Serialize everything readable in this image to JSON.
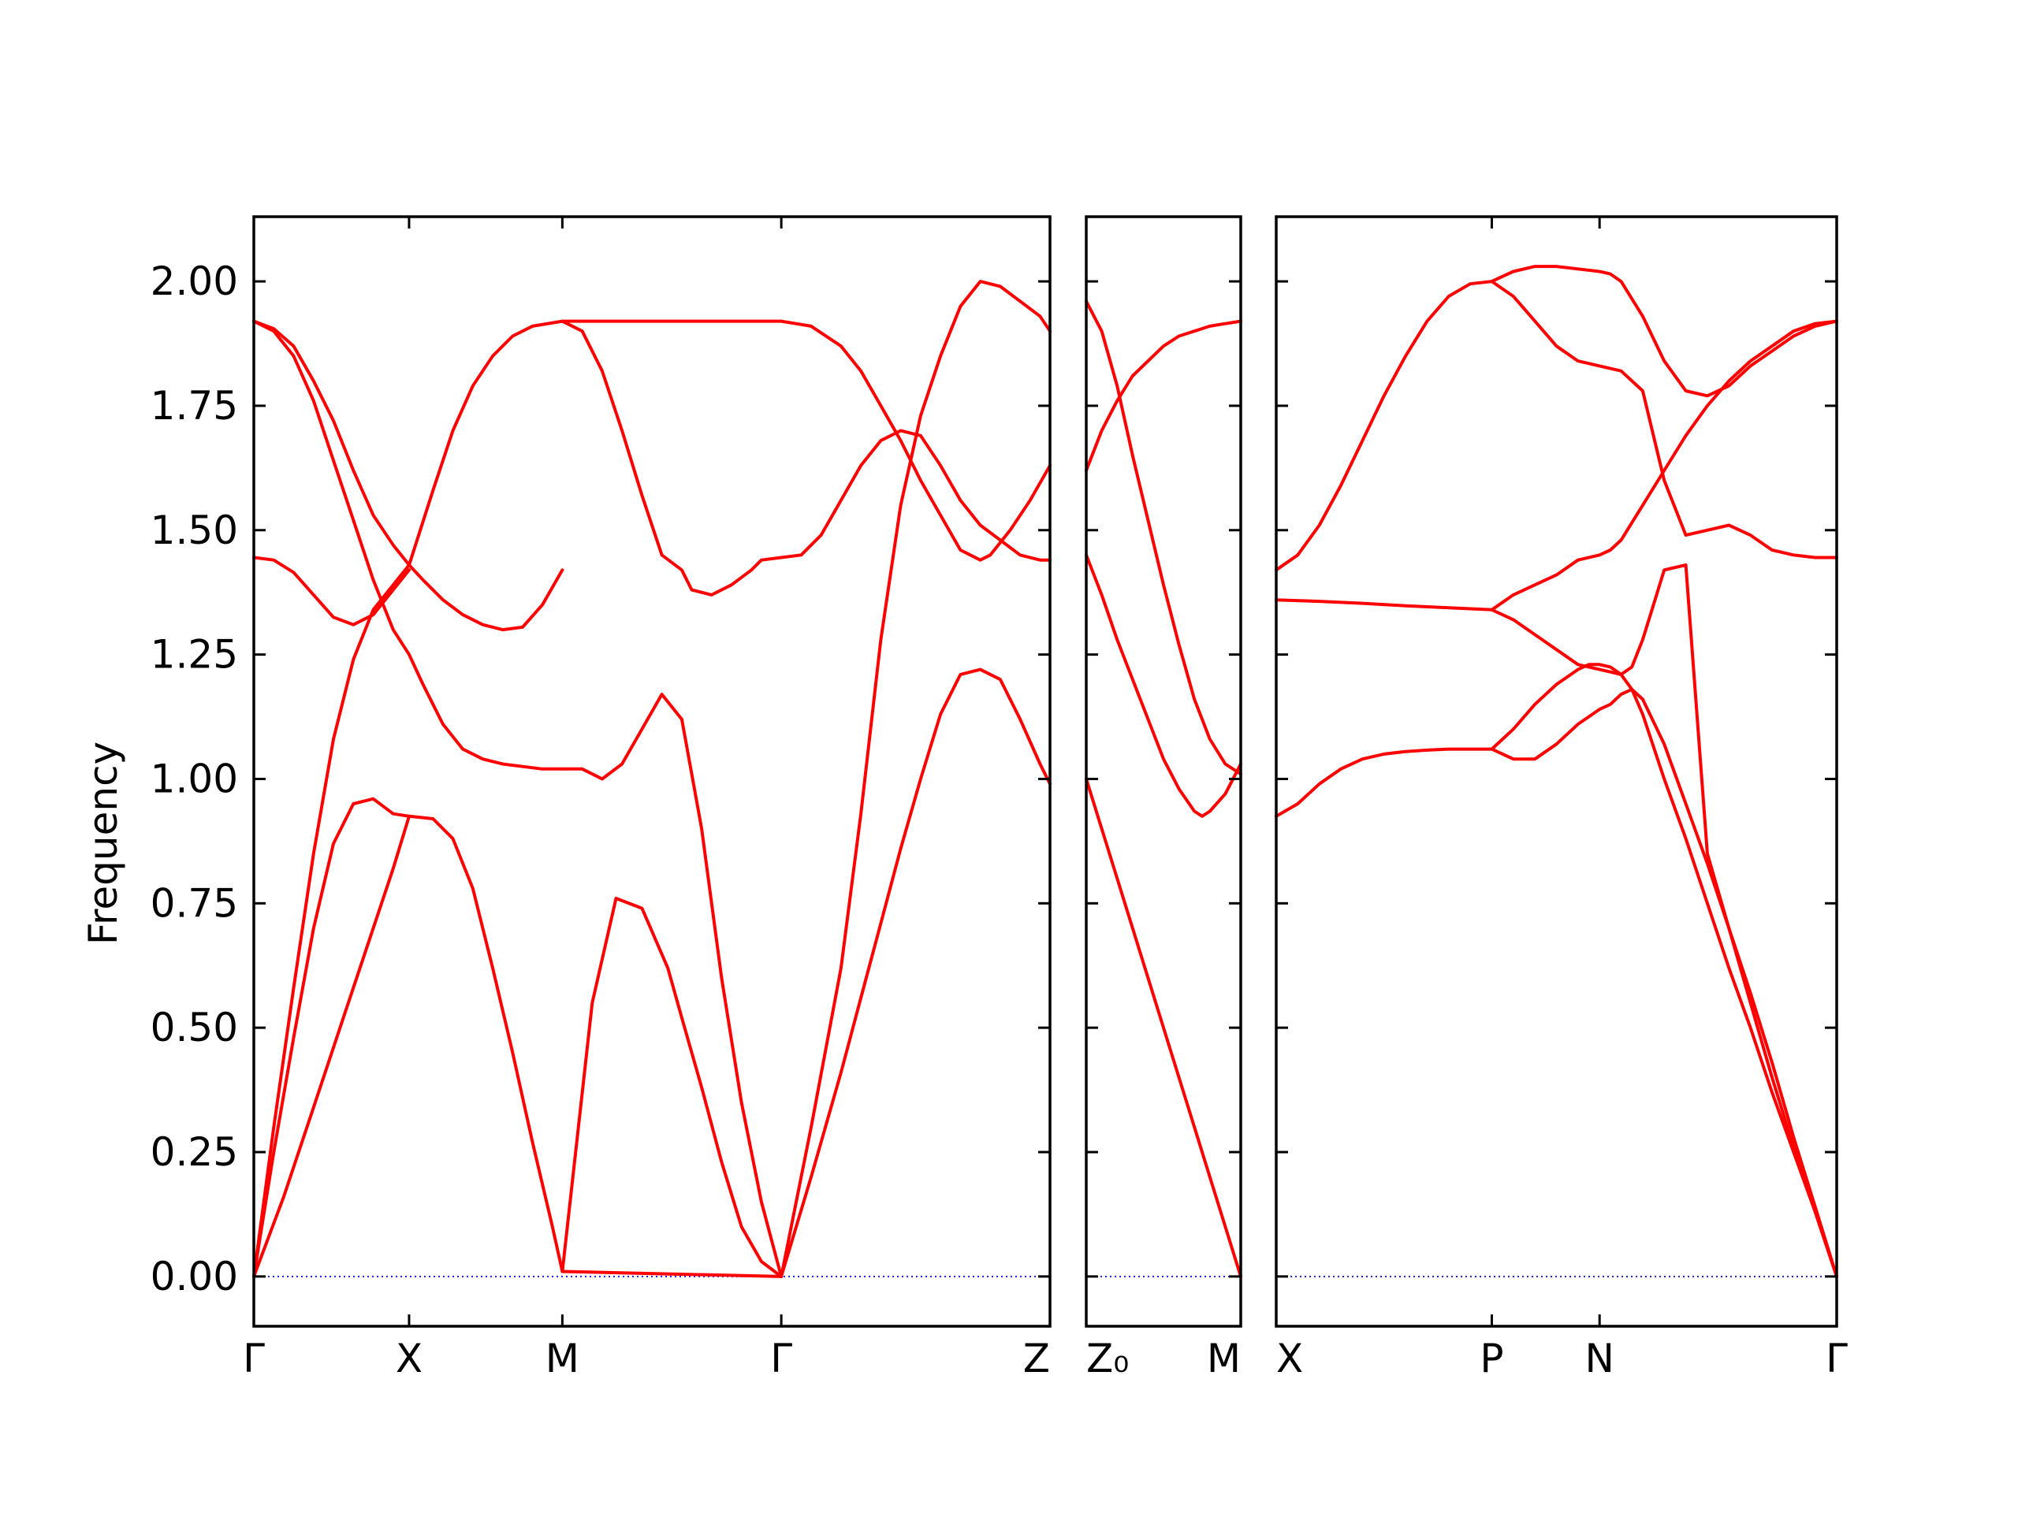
{
  "chart_data": {
    "type": "line",
    "ylabel": "Frequency",
    "ylim": [
      -0.1,
      2.13
    ],
    "yticks": [
      0,
      0.25,
      0.5,
      0.75,
      1.0,
      1.25,
      1.5,
      1.75,
      2.0
    ],
    "ytick_labels": [
      "0.00",
      "0.25",
      "0.50",
      "0.75",
      "1.00",
      "1.25",
      "1.50",
      "1.75",
      "2.00"
    ],
    "band_color": "#ff0000",
    "zero_line_color": "#1f1fd0",
    "panels": [
      {
        "name": "panel-1",
        "xlim": [
          0,
          4.0
        ],
        "xticks": [
          {
            "x": 0.0,
            "label": "Γ"
          },
          {
            "x": 0.78,
            "label": "X"
          },
          {
            "x": 1.55,
            "label": "M"
          },
          {
            "x": 2.65,
            "label": "Γ"
          },
          {
            "x": 4.0,
            "label": "Z"
          }
        ],
        "series": [
          {
            "x": [
              0,
              0.1,
              0.2,
              0.3,
              0.4,
              0.5,
              0.6,
              0.7,
              0.78,
              0.85,
              0.95,
              1.05,
              1.15,
              1.25,
              1.35,
              1.45,
              1.55
            ],
            "values": [
              1.92,
              1.905,
              1.87,
              1.8,
              1.72,
              1.62,
              1.53,
              1.47,
              1.43,
              1.4,
              1.36,
              1.33,
              1.31,
              1.3,
              1.305,
              1.35,
              1.42
            ]
          },
          {
            "x": [
              0,
              0.1,
              0.2,
              0.3,
              0.4,
              0.5,
              0.6,
              0.7,
              0.78,
              0.85,
              0.95,
              1.05,
              1.15,
              1.25,
              1.35,
              1.45,
              1.55
            ],
            "values": [
              1.92,
              1.9,
              1.85,
              1.76,
              1.64,
              1.52,
              1.4,
              1.3,
              1.25,
              1.19,
              1.11,
              1.06,
              1.04,
              1.03,
              1.025,
              1.02,
              1.02
            ]
          },
          {
            "x": [
              0,
              0.1,
              0.2,
              0.3,
              0.4,
              0.5,
              0.6,
              0.7,
              0.78
            ],
            "values": [
              1.445,
              1.44,
              1.415,
              1.37,
              1.325,
              1.31,
              1.33,
              1.38,
              1.42
            ]
          },
          {
            "x": [
              0,
              0.1,
              0.2,
              0.3,
              0.4,
              0.5,
              0.6,
              0.7,
              0.78,
              0.9,
              1.0,
              1.1,
              1.2,
              1.3,
              1.4,
              1.55
            ],
            "values": [
              0,
              0.3,
              0.58,
              0.85,
              1.08,
              1.24,
              1.34,
              1.39,
              1.43,
              1.58,
              1.7,
              1.79,
              1.85,
              1.89,
              1.91,
              1.92
            ]
          },
          {
            "x": [
              0,
              0.1,
              0.2,
              0.3,
              0.4,
              0.5,
              0.6,
              0.7,
              0.78
            ],
            "values": [
              0,
              0.25,
              0.48,
              0.7,
              0.87,
              0.95,
              0.96,
              0.93,
              0.925
            ]
          },
          {
            "x": [
              0,
              0.15,
              0.3,
              0.45,
              0.6,
              0.7,
              0.78,
              0.9,
              1.0,
              1.1,
              1.2,
              1.3,
              1.4,
              1.5,
              1.55
            ],
            "values": [
              0,
              0.16,
              0.34,
              0.52,
              0.7,
              0.82,
              0.925,
              0.92,
              0.88,
              0.78,
              0.62,
              0.45,
              0.27,
              0.1,
              0.01
            ]
          },
          {
            "x": [
              1.55,
              2.65
            ],
            "values": [
              1.92,
              1.92
            ]
          },
          {
            "x": [
              1.55,
              1.65,
              1.75,
              1.85,
              1.95,
              2.05,
              2.15,
              2.2,
              2.3,
              2.4,
              2.5,
              2.55,
              2.65
            ],
            "values": [
              1.92,
              1.9,
              1.82,
              1.7,
              1.57,
              1.45,
              1.42,
              1.38,
              1.37,
              1.39,
              1.42,
              1.44,
              1.445
            ]
          },
          {
            "x": [
              1.55,
              1.65,
              1.75,
              1.85,
              1.95,
              2.05,
              2.15,
              2.25,
              2.35,
              2.45,
              2.55,
              2.65
            ],
            "values": [
              1.02,
              1.02,
              1.0,
              1.03,
              1.1,
              1.17,
              1.12,
              0.9,
              0.6,
              0.35,
              0.15,
              0
            ]
          },
          {
            "x": [
              1.55,
              1.7,
              1.82,
              1.95,
              2.08,
              2.15,
              2.25,
              2.35,
              2.45,
              2.55,
              2.65
            ],
            "values": [
              0.01,
              0.55,
              0.76,
              0.74,
              0.62,
              0.52,
              0.38,
              0.23,
              0.1,
              0.03,
              0
            ]
          },
          {
            "x": [
              1.55,
              2.65
            ],
            "values": [
              0.01,
              0.0
            ]
          },
          {
            "x": [
              2.65,
              2.8,
              2.95,
              3.05,
              3.15,
              3.25,
              3.35,
              3.45,
              3.55,
              3.65,
              3.7,
              3.8,
              3.9,
              4.0
            ],
            "values": [
              1.92,
              1.91,
              1.87,
              1.82,
              1.75,
              1.68,
              1.6,
              1.53,
              1.46,
              1.44,
              1.45,
              1.5,
              1.56,
              1.63
            ]
          },
          {
            "x": [
              2.65,
              2.75,
              2.85,
              2.95,
              3.05,
              3.15,
              3.25,
              3.35,
              3.45,
              3.55,
              3.65,
              3.75,
              3.85,
              3.95,
              4.0
            ],
            "values": [
              1.445,
              1.45,
              1.49,
              1.56,
              1.63,
              1.68,
              1.7,
              1.69,
              1.63,
              1.56,
              1.51,
              1.48,
              1.45,
              1.44,
              1.44
            ]
          },
          {
            "x": [
              2.65,
              2.8,
              2.95,
              3.05,
              3.15,
              3.25,
              3.35,
              3.45,
              3.55,
              3.65,
              3.75,
              3.85,
              3.95,
              4.0
            ],
            "values": [
              0,
              0.3,
              0.62,
              0.93,
              1.28,
              1.55,
              1.73,
              1.85,
              1.95,
              2.0,
              1.99,
              1.96,
              1.93,
              1.9
            ]
          },
          {
            "x": [
              2.65,
              2.8,
              2.95,
              3.05,
              3.15,
              3.25,
              3.35,
              3.45,
              3.55,
              3.65,
              3.75,
              3.85,
              3.95,
              4.0
            ],
            "values": [
              0,
              0.2,
              0.41,
              0.56,
              0.71,
              0.86,
              1.0,
              1.13,
              1.21,
              1.22,
              1.2,
              1.12,
              1.03,
              0.99
            ]
          }
        ]
      },
      {
        "name": "panel-2",
        "xlim": [
          0,
          1.0
        ],
        "xticks": [
          {
            "x": 0.0,
            "label": "Z₀"
          },
          {
            "x": 1.0,
            "label": "M"
          }
        ],
        "series": [
          {
            "x": [
              0,
              0.1,
              0.2,
              0.3,
              0.4,
              0.5,
              0.6,
              0.7,
              0.8,
              0.9,
              1.0
            ],
            "values": [
              1.96,
              1.9,
              1.79,
              1.65,
              1.52,
              1.39,
              1.27,
              1.16,
              1.08,
              1.03,
              1.01
            ]
          },
          {
            "x": [
              0,
              0.1,
              0.2,
              0.3,
              0.4,
              0.5,
              0.6,
              0.7,
              0.8,
              0.9,
              1.0
            ],
            "values": [
              1.62,
              1.7,
              1.76,
              1.81,
              1.84,
              1.87,
              1.89,
              1.9,
              1.91,
              1.915,
              1.92
            ]
          },
          {
            "x": [
              0,
              0.1,
              0.2,
              0.3,
              0.4,
              0.5,
              0.6,
              0.7,
              0.75,
              0.8,
              0.9,
              1.0
            ],
            "values": [
              1.45,
              1.37,
              1.28,
              1.2,
              1.12,
              1.04,
              0.98,
              0.935,
              0.925,
              0.935,
              0.97,
              1.03
            ]
          },
          {
            "x": [
              0,
              0.1,
              0.2,
              0.3,
              0.4,
              0.5,
              0.6,
              0.7,
              0.8,
              0.9,
              1.0
            ],
            "values": [
              1.0,
              0.9,
              0.8,
              0.7,
              0.6,
              0.5,
              0.4,
              0.3,
              0.2,
              0.1,
              0.0
            ]
          }
        ]
      },
      {
        "name": "panel-3",
        "xlim": [
          0,
          2.6
        ],
        "xticks": [
          {
            "x": 0.0,
            "label": "X"
          },
          {
            "x": 1.0,
            "label": "P"
          },
          {
            "x": 1.5,
            "label": "N"
          },
          {
            "x": 2.6,
            "label": "Γ"
          }
        ],
        "series": [
          {
            "x": [
              0,
              0.1,
              0.2,
              0.3,
              0.4,
              0.5,
              0.6,
              0.7,
              0.8,
              0.9,
              1.0,
              1.1,
              1.2,
              1.3,
              1.4,
              1.5,
              1.6,
              1.7,
              1.8,
              1.9,
              2.0,
              2.1,
              2.2,
              2.3,
              2.4,
              2.5,
              2.6
            ],
            "values": [
              1.42,
              1.45,
              1.51,
              1.59,
              1.68,
              1.77,
              1.85,
              1.92,
              1.97,
              1.995,
              2.0,
              1.97,
              1.92,
              1.87,
              1.84,
              1.83,
              1.82,
              1.78,
              1.6,
              1.49,
              1.5,
              1.51,
              1.49,
              1.46,
              1.45,
              1.445,
              1.445
            ]
          },
          {
            "x": [
              1.0,
              1.1,
              1.2,
              1.3,
              1.4,
              1.5,
              1.55,
              1.6,
              1.7,
              1.8,
              1.9,
              2.0,
              2.1,
              2.2,
              2.3,
              2.4,
              2.5,
              2.6
            ],
            "values": [
              2.0,
              2.02,
              2.03,
              2.03,
              2.025,
              2.02,
              2.015,
              2.0,
              1.93,
              1.84,
              1.78,
              1.77,
              1.79,
              1.83,
              1.86,
              1.89,
              1.91,
              1.92
            ]
          },
          {
            "x": [
              1.0,
              1.1,
              1.2,
              1.3,
              1.4,
              1.5,
              1.55,
              1.6,
              1.7,
              1.8,
              1.9,
              2.0,
              2.1,
              2.2,
              2.3,
              2.4,
              2.5,
              2.6
            ],
            "values": [
              1.34,
              1.37,
              1.39,
              1.41,
              1.44,
              1.45,
              1.46,
              1.48,
              1.55,
              1.62,
              1.69,
              1.75,
              1.8,
              1.84,
              1.87,
              1.9,
              1.915,
              1.92
            ]
          },
          {
            "x": [
              0,
              0.2,
              0.4,
              0.6,
              0.8,
              1.0
            ],
            "values": [
              1.36,
              1.357,
              1.353,
              1.348,
              1.344,
              1.34
            ]
          },
          {
            "x": [
              1.0,
              1.1,
              1.2,
              1.3,
              1.4,
              1.45,
              1.5,
              1.55,
              1.6,
              1.65,
              1.7,
              1.75,
              1.8,
              1.9,
              2.0,
              2.1,
              2.2,
              2.3,
              2.4,
              2.5,
              2.6
            ],
            "values": [
              1.34,
              1.32,
              1.29,
              1.26,
              1.23,
              1.225,
              1.22,
              1.215,
              1.21,
              1.225,
              1.28,
              1.35,
              1.42,
              1.43,
              0.85,
              0.7,
              0.55,
              0.4,
              0.26,
              0.13,
              0.0
            ]
          },
          {
            "x": [
              0,
              0.1,
              0.2,
              0.3,
              0.4,
              0.5,
              0.6,
              0.7,
              0.8,
              0.9,
              1.0
            ],
            "values": [
              0.925,
              0.95,
              0.99,
              1.02,
              1.04,
              1.05,
              1.055,
              1.058,
              1.06,
              1.06,
              1.06
            ]
          },
          {
            "x": [
              1.0,
              1.05,
              1.1,
              1.2,
              1.3,
              1.4,
              1.45,
              1.5,
              1.55,
              1.6,
              1.65,
              1.7,
              1.8,
              1.9,
              2.0,
              2.1,
              2.2,
              2.3,
              2.4,
              2.5,
              2.6
            ],
            "values": [
              1.06,
              1.08,
              1.1,
              1.15,
              1.19,
              1.22,
              1.23,
              1.23,
              1.225,
              1.21,
              1.18,
              1.13,
              1.0,
              0.88,
              0.75,
              0.62,
              0.5,
              0.37,
              0.25,
              0.13,
              0.0
            ]
          },
          {
            "x": [
              1.0,
              1.1,
              1.2,
              1.3,
              1.4,
              1.5,
              1.55,
              1.6,
              1.65,
              1.7,
              1.8,
              1.9,
              2.0,
              2.1,
              2.2,
              2.3,
              2.4,
              2.5,
              2.6
            ],
            "values": [
              1.06,
              1.04,
              1.04,
              1.07,
              1.11,
              1.14,
              1.15,
              1.17,
              1.18,
              1.16,
              1.07,
              0.95,
              0.83,
              0.7,
              0.57,
              0.43,
              0.28,
              0.14,
              0.0
            ]
          }
        ]
      }
    ]
  }
}
